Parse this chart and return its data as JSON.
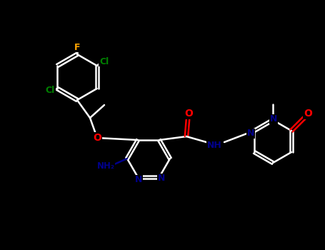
{
  "bg_color": "#000000",
  "line_color": "#ffffff",
  "atom_colors": {
    "F": "#ffa500",
    "Cl": "#008000",
    "O": "#ff0000",
    "N": "#00008b",
    "C": "#ffffff"
  },
  "figsize": [
    4.55,
    3.5
  ],
  "dpi": 100
}
